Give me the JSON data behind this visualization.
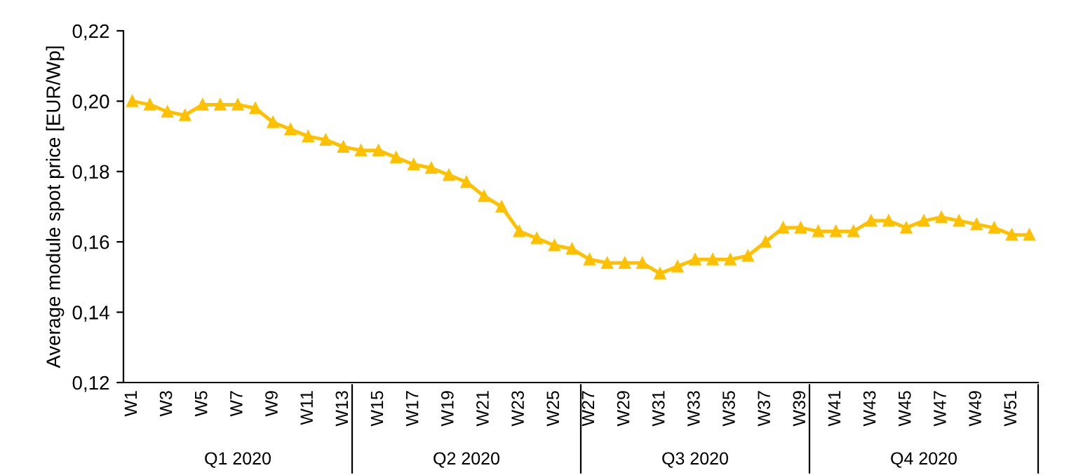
{
  "chart_data": {
    "type": "line",
    "ylabel": "Average module spot price [EUR/Wp]",
    "categories": [
      "W1",
      null,
      "W3",
      null,
      "W5",
      null,
      "W7",
      null,
      "W9",
      null,
      "W11",
      null,
      "W13",
      null,
      "W15",
      null,
      "W17",
      null,
      "W19",
      null,
      "W21",
      null,
      "W23",
      null,
      "W25",
      null,
      "W27",
      null,
      "W29",
      null,
      "W31",
      null,
      "W33",
      null,
      "W35",
      null,
      "W37",
      null,
      "W39",
      null,
      "W41",
      null,
      "W43",
      null,
      "W45",
      null,
      "W47",
      null,
      "W49",
      null,
      "W51",
      null
    ],
    "series": [
      {
        "color": "#ffc000",
        "values": [
          0.2,
          0.199,
          0.197,
          0.196,
          0.199,
          0.199,
          0.199,
          0.198,
          0.194,
          0.192,
          0.19,
          0.189,
          0.187,
          0.186,
          0.186,
          0.184,
          0.182,
          0.181,
          0.179,
          0.177,
          0.173,
          0.17,
          0.163,
          0.161,
          0.159,
          0.158,
          0.155,
          0.154,
          0.154,
          0.154,
          0.151,
          0.153,
          0.155,
          0.155,
          0.155,
          0.156,
          0.16,
          0.164,
          0.164,
          0.163,
          0.163,
          0.163,
          0.166,
          0.166,
          0.164,
          0.166,
          0.167,
          0.166,
          0.165,
          0.164,
          0.162,
          0.162
        ]
      }
    ],
    "ylim": [
      0.12,
      0.22
    ],
    "yticks": [
      {
        "value": 0.12,
        "label": "0,12"
      },
      {
        "value": 0.14,
        "label": "0,14"
      },
      {
        "value": 0.16,
        "label": "0,16"
      },
      {
        "value": 0.18,
        "label": "0,18"
      },
      {
        "value": 0.2,
        "label": "0,20"
      },
      {
        "value": 0.22,
        "label": "0,22"
      }
    ],
    "annotations": [
      "Q1 2020",
      "Q2 2020",
      "Q3 2020",
      "Q4 2020"
    ],
    "marker": "triangle",
    "line_style": "solid",
    "grid": false,
    "legend": false
  }
}
